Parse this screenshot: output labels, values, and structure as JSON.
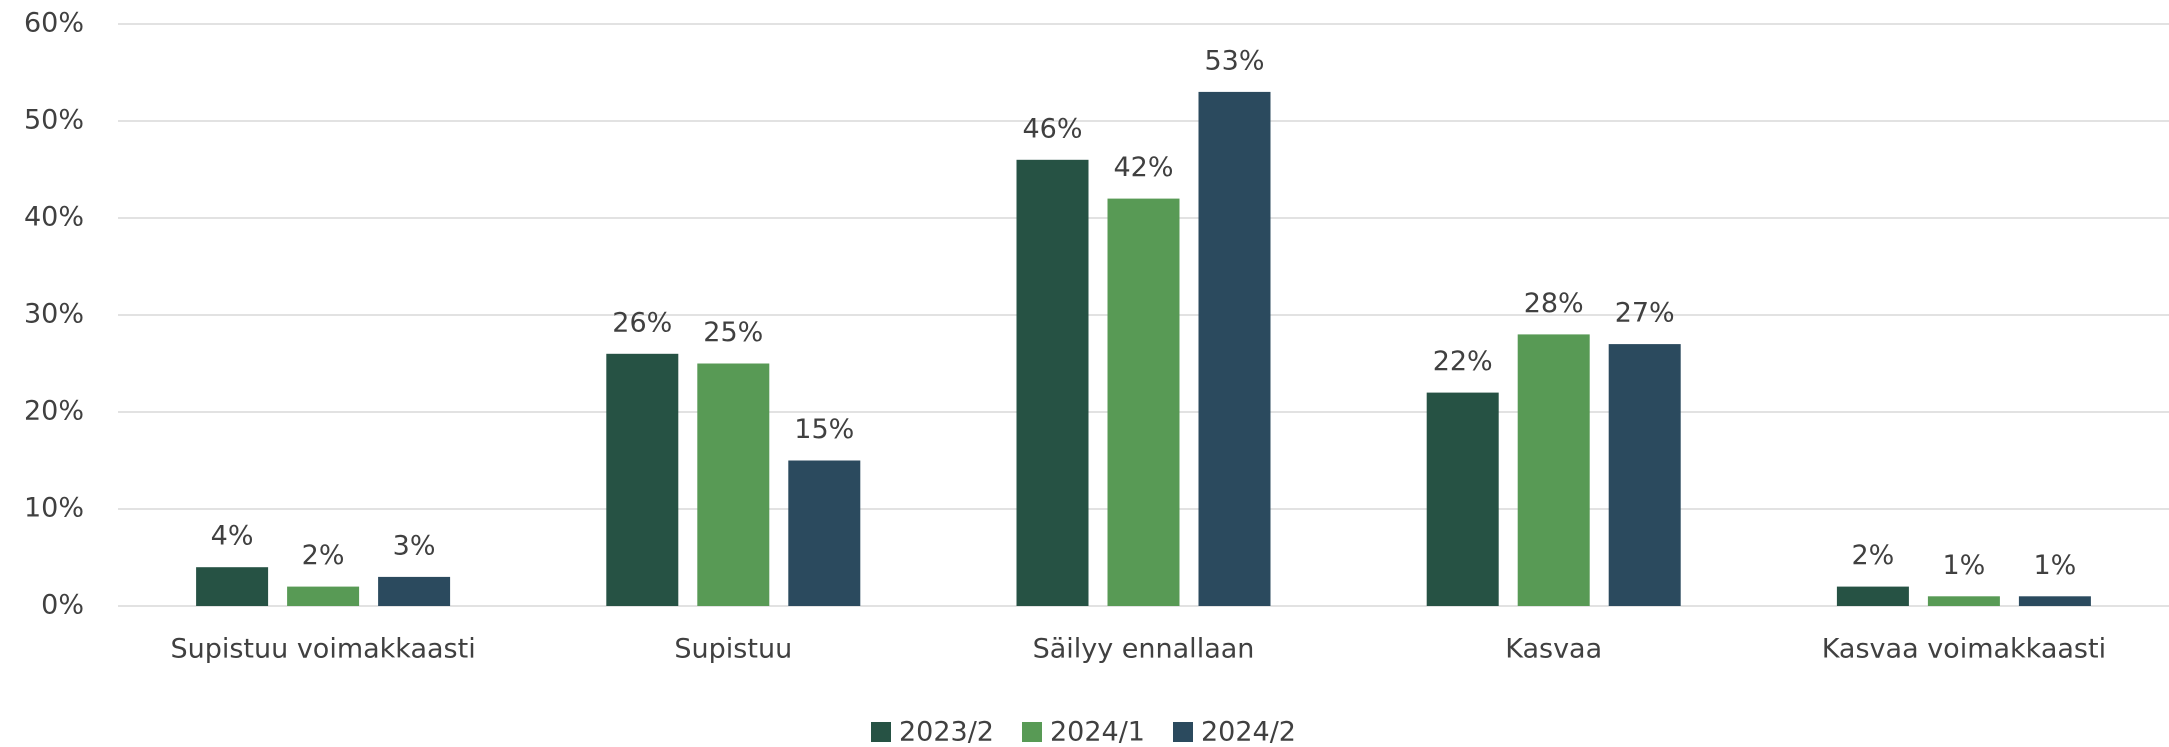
{
  "chart_data": {
    "type": "bar",
    "categories": [
      "Supistuu voimakkaasti",
      "Supistuu",
      "Säilyy ennallaan",
      "Kasvaa",
      "Kasvaa voimakkaasti"
    ],
    "series": [
      {
        "name": "2023/2",
        "color": "#265244",
        "values": [
          4,
          26,
          46,
          22,
          2
        ],
        "value_labels": [
          "4%",
          "26%",
          "46%",
          "22%",
          "2%"
        ]
      },
      {
        "name": "2024/1",
        "color": "#589a55",
        "values": [
          2,
          25,
          42,
          28,
          1
        ],
        "value_labels": [
          "2%",
          "25%",
          "42%",
          "28%",
          "1%"
        ]
      },
      {
        "name": "2024/2",
        "color": "#2b4a5e",
        "values": [
          3,
          15,
          53,
          27,
          1
        ],
        "value_labels": [
          "3%",
          "15%",
          "53%",
          "27%",
          "1%"
        ]
      }
    ],
    "ylim": [
      0,
      60
    ],
    "yticks": [
      {
        "value": 0,
        "label": "0%"
      },
      {
        "value": 10,
        "label": "10%"
      },
      {
        "value": 20,
        "label": "20%"
      },
      {
        "value": 30,
        "label": "30%"
      },
      {
        "value": 40,
        "label": "40%"
      },
      {
        "value": 50,
        "label": "50%"
      },
      {
        "value": 60,
        "label": "60%"
      }
    ],
    "grid": true,
    "legend": "bottom"
  }
}
